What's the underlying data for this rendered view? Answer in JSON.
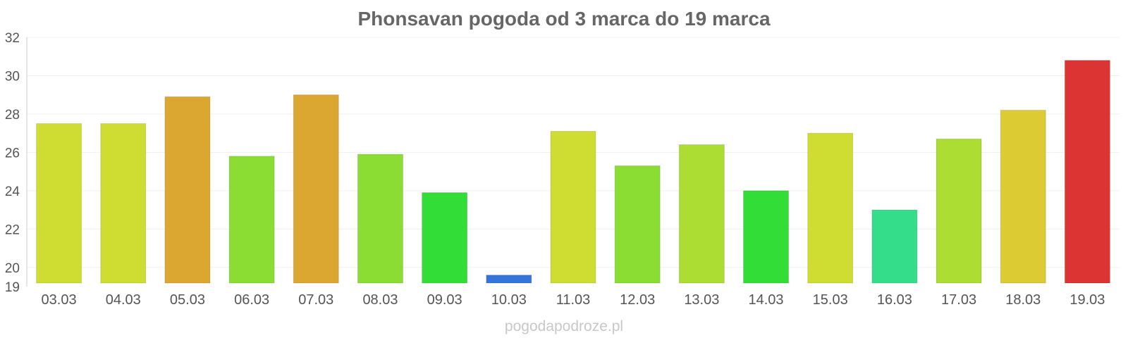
{
  "chart_data": {
    "type": "bar",
    "title": "Phonsavan pogoda od 3 marca do 19 marca",
    "xlabel": "",
    "ylabel": "",
    "ylim": [
      19,
      32
    ],
    "yticks": [
      19,
      20,
      22,
      24,
      26,
      28,
      30,
      32
    ],
    "grid": true,
    "legend": "none",
    "categories": [
      "03.03",
      "04.03",
      "05.03",
      "06.03",
      "07.03",
      "08.03",
      "09.03",
      "10.03",
      "11.03",
      "12.03",
      "13.03",
      "14.03",
      "15.03",
      "16.03",
      "17.03",
      "18.03",
      "19.03"
    ],
    "values": [
      27.5,
      27.5,
      28.9,
      25.8,
      29.0,
      25.9,
      23.9,
      19.6,
      27.1,
      25.3,
      26.4,
      24.0,
      27.0,
      23.0,
      26.7,
      28.2,
      30.8
    ],
    "colors": [
      "#cfdd32",
      "#cfdd32",
      "#dca731",
      "#8bdd33",
      "#dca731",
      "#8bdd33",
      "#33dd38",
      "#3375dd",
      "#cfdd32",
      "#8bdd33",
      "#acdd32",
      "#33dd38",
      "#cfdd32",
      "#33dd89",
      "#acdd32",
      "#dccb32",
      "#dc3333"
    ]
  },
  "footer": {
    "watermark": "pogodapodroze.pl"
  }
}
